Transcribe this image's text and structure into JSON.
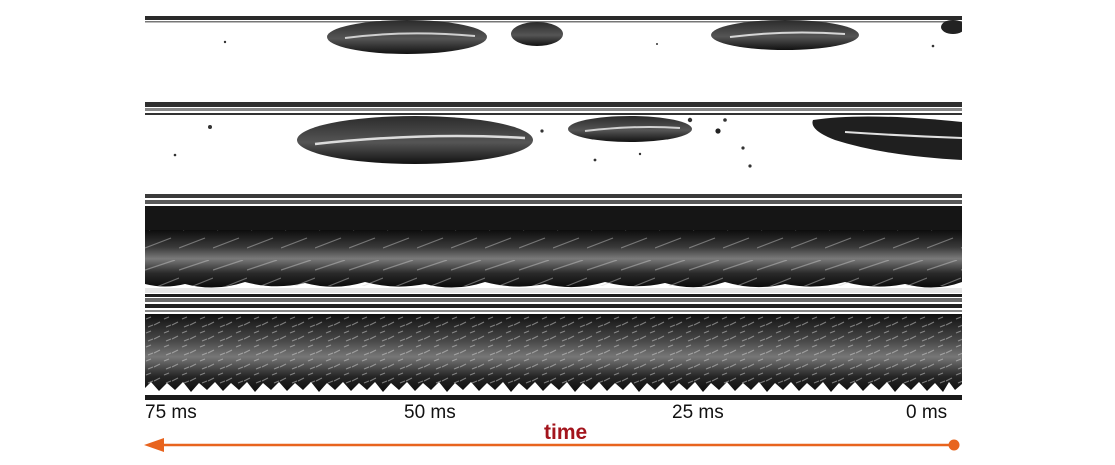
{
  "figure": {
    "tick_labels": [
      "75 ms",
      "50 ms",
      "25 ms",
      "0 ms"
    ],
    "time_label": "time",
    "colors": {
      "arrow": "#e8641e",
      "time_text": "#a3141c",
      "liquid": "#1c1c1c",
      "tube": "#2a2a2a",
      "background": "#ffffff"
    }
  }
}
